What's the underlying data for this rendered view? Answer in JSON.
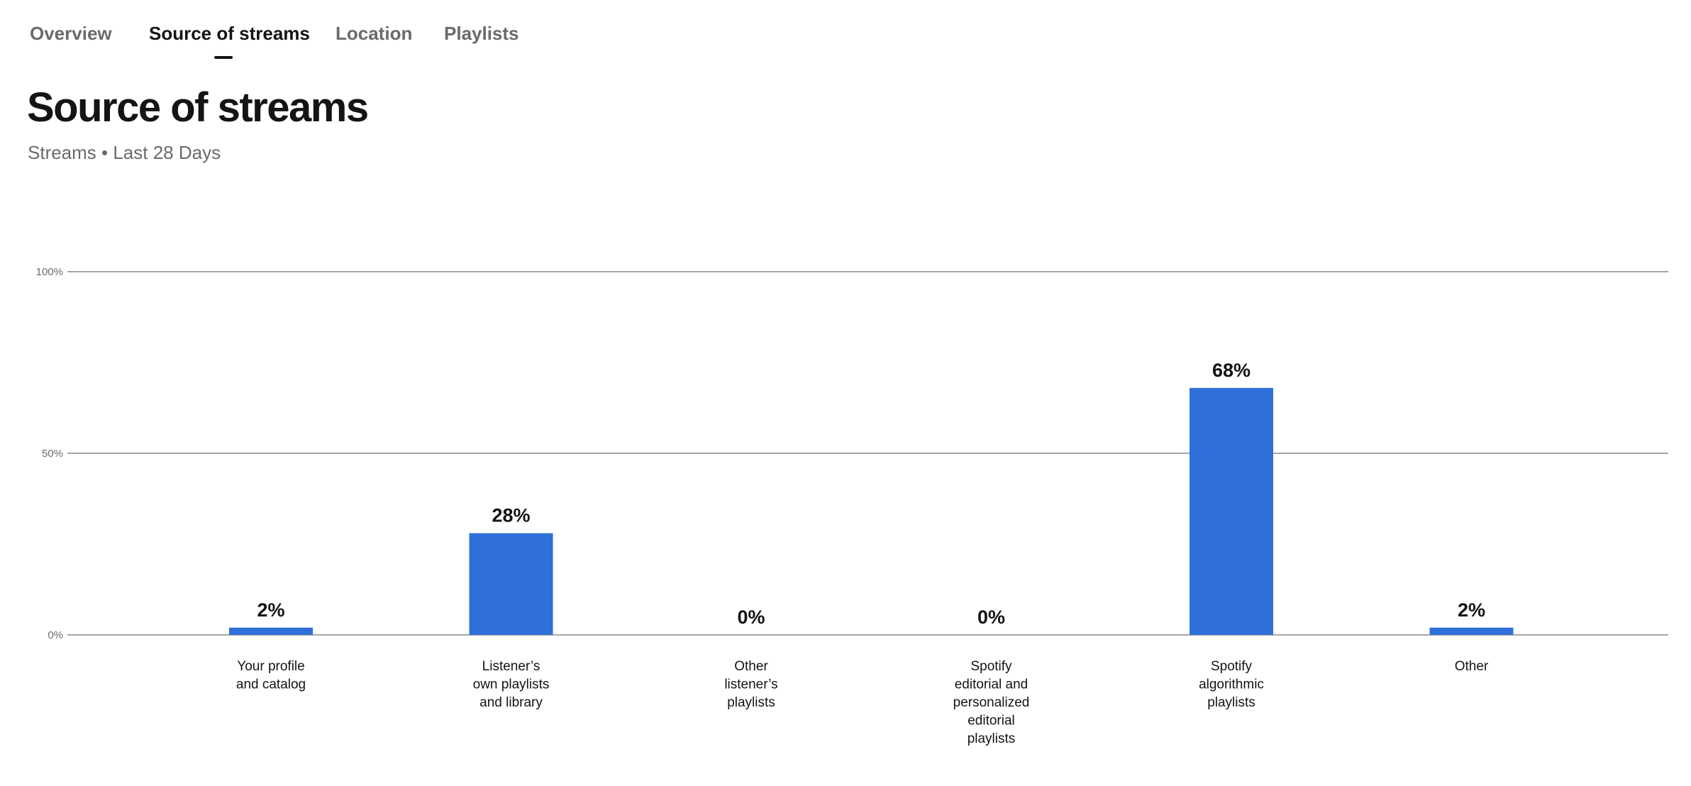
{
  "tabs": [
    {
      "label": "Overview",
      "active": false
    },
    {
      "label": "Source of streams",
      "active": true
    },
    {
      "label": "Location",
      "active": false
    },
    {
      "label": "Playlists",
      "active": false
    }
  ],
  "page": {
    "title": "Source of streams",
    "subtitle": "Streams • Last 28 Days"
  },
  "colors": {
    "bar": "#2f6fd8",
    "grid": "#8a8a8a",
    "text": "#141414",
    "muted": "#6a6a6a"
  },
  "chart_data": {
    "type": "bar",
    "title": "Source of streams",
    "xlabel": "",
    "ylabel": "",
    "ylim": [
      0,
      100
    ],
    "yticks": [
      0,
      50,
      100
    ],
    "ytick_labels": [
      "0%",
      "50%",
      "100%"
    ],
    "grid": true,
    "categories": [
      [
        "Your profile",
        "and catalog"
      ],
      [
        "Listener’s",
        "own playlists",
        "and library"
      ],
      [
        "Other",
        "listener’s",
        "playlists"
      ],
      [
        "Spotify",
        "editorial and",
        "personalized",
        "editorial",
        "playlists"
      ],
      [
        "Spotify",
        "algorithmic",
        "playlists"
      ],
      [
        "Other"
      ]
    ],
    "values": [
      2,
      28,
      0,
      0,
      68,
      2
    ],
    "value_labels": [
      "2%",
      "28%",
      "0%",
      "0%",
      "68%",
      "2%"
    ]
  }
}
